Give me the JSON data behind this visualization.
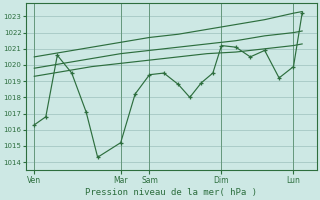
{
  "bg_color": "#cde8e4",
  "grid_color": "#aaccc8",
  "line_color": "#2d6e3e",
  "xlabel": "Pression niveau de la mer( hPa )",
  "ylim": [
    1013.5,
    1023.8
  ],
  "yticks": [
    1014,
    1015,
    1016,
    1017,
    1018,
    1019,
    1020,
    1021,
    1022,
    1023
  ],
  "xtick_labels": [
    "Ven",
    "Mar",
    "Sam",
    "Dim",
    "Lun"
  ],
  "xtick_pos": [
    0.0,
    3.0,
    4.0,
    6.5,
    9.0
  ],
  "vline_pos": [
    0.0,
    3.0,
    4.0,
    6.5,
    9.0
  ],
  "main_line_x": [
    0.0,
    0.4,
    0.8,
    1.3,
    1.8,
    2.2,
    3.0,
    3.5,
    4.0,
    4.5,
    5.0,
    5.4,
    5.8,
    6.2,
    6.5,
    7.0,
    7.5,
    8.0,
    8.5,
    9.0,
    9.3
  ],
  "main_line_y": [
    1016.3,
    1016.8,
    1020.6,
    1019.5,
    1017.1,
    1014.3,
    1015.2,
    1018.2,
    1019.4,
    1019.5,
    1018.8,
    1018.0,
    1018.9,
    1019.5,
    1021.2,
    1021.1,
    1020.5,
    1020.9,
    1019.2,
    1019.9,
    1023.2
  ],
  "upper_band_x": [
    0.0,
    1.0,
    2.0,
    3.0,
    4.0,
    5.0,
    6.0,
    7.0,
    8.0,
    9.0,
    9.3
  ],
  "upper_band_y": [
    1020.5,
    1020.8,
    1021.1,
    1021.4,
    1021.7,
    1021.9,
    1022.2,
    1022.5,
    1022.8,
    1023.2,
    1023.3
  ],
  "lower_band_x": [
    0.0,
    1.0,
    2.0,
    3.0,
    4.0,
    5.0,
    6.0,
    7.0,
    8.0,
    9.0,
    9.3
  ],
  "lower_band_y": [
    1019.3,
    1019.6,
    1019.9,
    1020.1,
    1020.3,
    1020.5,
    1020.7,
    1020.8,
    1021.0,
    1021.2,
    1021.3
  ],
  "mid_band_x": [
    0.0,
    1.0,
    2.0,
    3.0,
    4.0,
    5.0,
    6.0,
    7.0,
    8.0,
    9.0,
    9.3
  ],
  "mid_band_y": [
    1019.8,
    1020.1,
    1020.4,
    1020.7,
    1020.9,
    1021.1,
    1021.3,
    1021.5,
    1021.8,
    1022.0,
    1022.1
  ],
  "xlim": [
    -0.3,
    9.8
  ]
}
